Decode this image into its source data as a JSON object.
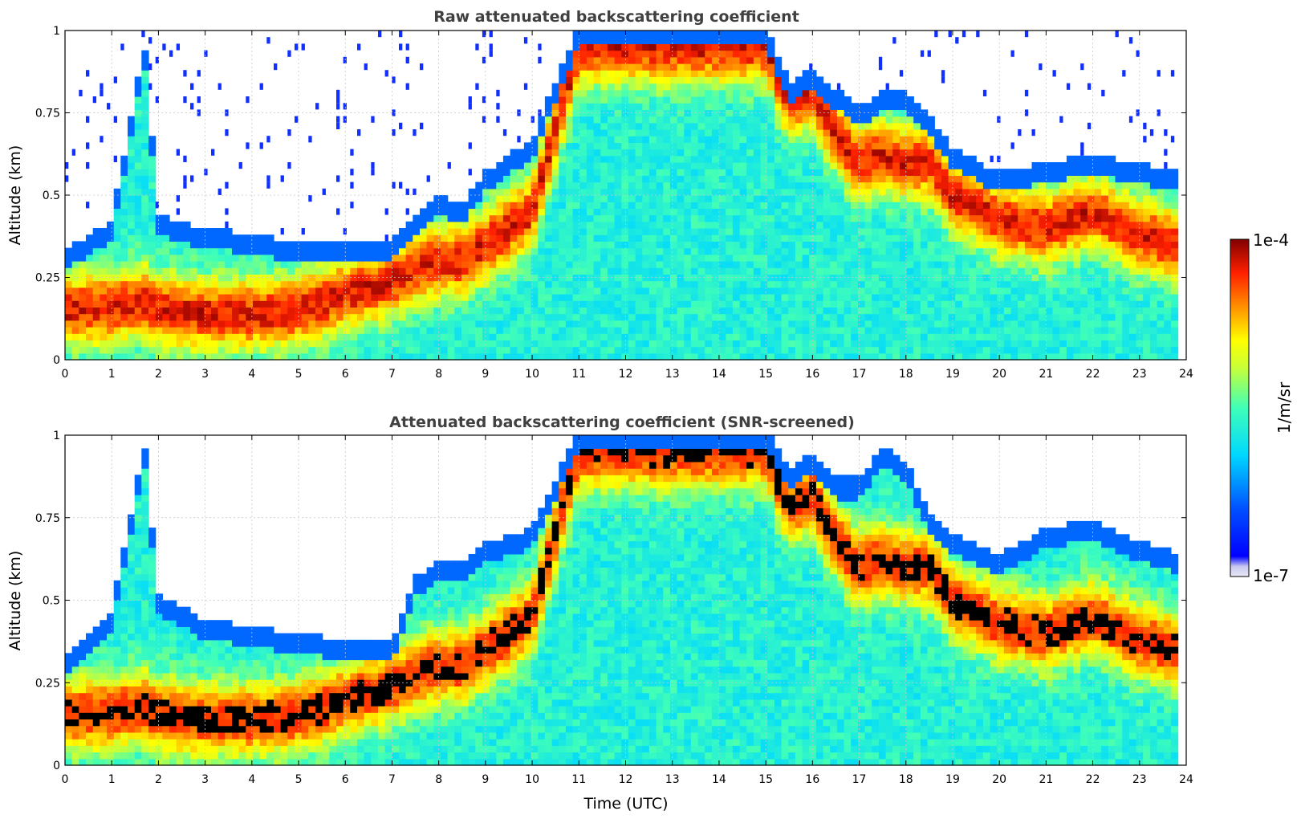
{
  "figure": {
    "xlabel": "Time (UTC)",
    "colorbar": {
      "label": "1/m/sr",
      "max_label": "1e-4",
      "min_label": "1e-7",
      "scale": "log",
      "range": [
        1e-07,
        0.0001
      ],
      "colormap": "jet",
      "low_color": "#e8e8f6",
      "high_color": "#7f0000",
      "screened_peak_color": "#000000"
    }
  },
  "chart_data": [
    {
      "type": "heatmap",
      "title": "Raw attenuated backscattering coefficient",
      "xlabel": "",
      "ylabel": "Altitude (km)",
      "xlim": [
        0,
        24
      ],
      "ylim": [
        0,
        1
      ],
      "x_ticks": [
        "0",
        "1",
        "2",
        "3",
        "4",
        "5",
        "6",
        "7",
        "8",
        "9",
        "10",
        "11",
        "12",
        "13",
        "14",
        "15",
        "16",
        "17",
        "18",
        "19",
        "20",
        "21",
        "22",
        "23",
        "24"
      ],
      "y_ticks": [
        "0",
        "0.25",
        "0.5",
        "0.75",
        "1"
      ],
      "grid": true,
      "screened": false,
      "layer_profile": {
        "time_h": [
          0,
          1,
          1.7,
          2,
          3,
          4,
          5,
          6,
          7,
          7.5,
          8,
          8.5,
          9,
          10,
          11,
          12,
          13,
          14,
          15,
          15.5,
          16,
          16.5,
          17,
          17.5,
          18,
          18.5,
          19,
          20,
          21,
          22,
          23,
          23.8
        ],
        "layer_top_km": [
          0.32,
          0.4,
          0.95,
          0.42,
          0.38,
          0.36,
          0.34,
          0.33,
          0.35,
          0.42,
          0.48,
          0.45,
          0.55,
          0.65,
          1.0,
          1.0,
          1.0,
          1.0,
          1.0,
          0.82,
          0.87,
          0.8,
          0.75,
          0.8,
          0.8,
          0.72,
          0.62,
          0.55,
          0.58,
          0.6,
          0.58,
          0.55
        ],
        "peak_center_km": [
          0.15,
          0.16,
          0.18,
          0.15,
          0.14,
          0.14,
          0.15,
          0.2,
          0.24,
          0.28,
          0.3,
          0.3,
          0.35,
          0.45,
          0.95,
          0.95,
          0.95,
          0.95,
          0.95,
          0.78,
          0.82,
          0.68,
          0.6,
          0.62,
          0.6,
          0.6,
          0.5,
          0.43,
          0.4,
          0.45,
          0.38,
          0.35
        ]
      }
    },
    {
      "type": "heatmap",
      "title": "Attenuated backscattering coefficient (SNR-screened)",
      "xlabel": "Time (UTC)",
      "ylabel": "Altitude (km)",
      "xlim": [
        0,
        24
      ],
      "ylim": [
        0,
        1
      ],
      "x_ticks": [
        "0",
        "1",
        "2",
        "3",
        "4",
        "5",
        "6",
        "7",
        "8",
        "9",
        "10",
        "11",
        "12",
        "13",
        "14",
        "15",
        "16",
        "17",
        "18",
        "19",
        "20",
        "21",
        "22",
        "23",
        "24"
      ],
      "y_ticks": [
        "0",
        "0.25",
        "0.5",
        "0.75",
        "1"
      ],
      "grid": true,
      "screened": true,
      "layer_profile": {
        "time_h": [
          0,
          1,
          1.7,
          2,
          3,
          4,
          5,
          6,
          7,
          7.5,
          8,
          8.5,
          9,
          10,
          11,
          12,
          13,
          14,
          15,
          15.5,
          16,
          16.5,
          17,
          17.5,
          18,
          18.5,
          19,
          20,
          21,
          22,
          23,
          23.8
        ],
        "layer_top_km": [
          0.3,
          0.45,
          0.95,
          0.5,
          0.42,
          0.4,
          0.38,
          0.36,
          0.36,
          0.55,
          0.6,
          0.6,
          0.65,
          0.7,
          1.0,
          1.0,
          1.0,
          1.0,
          1.0,
          0.88,
          0.93,
          0.85,
          0.85,
          0.95,
          0.9,
          0.75,
          0.68,
          0.62,
          0.7,
          0.72,
          0.66,
          0.62
        ],
        "peak_center_km": [
          0.15,
          0.16,
          0.18,
          0.15,
          0.14,
          0.14,
          0.15,
          0.2,
          0.24,
          0.28,
          0.3,
          0.3,
          0.35,
          0.45,
          0.95,
          0.95,
          0.95,
          0.95,
          0.95,
          0.78,
          0.82,
          0.68,
          0.6,
          0.62,
          0.6,
          0.6,
          0.5,
          0.43,
          0.4,
          0.45,
          0.38,
          0.35
        ]
      }
    }
  ]
}
